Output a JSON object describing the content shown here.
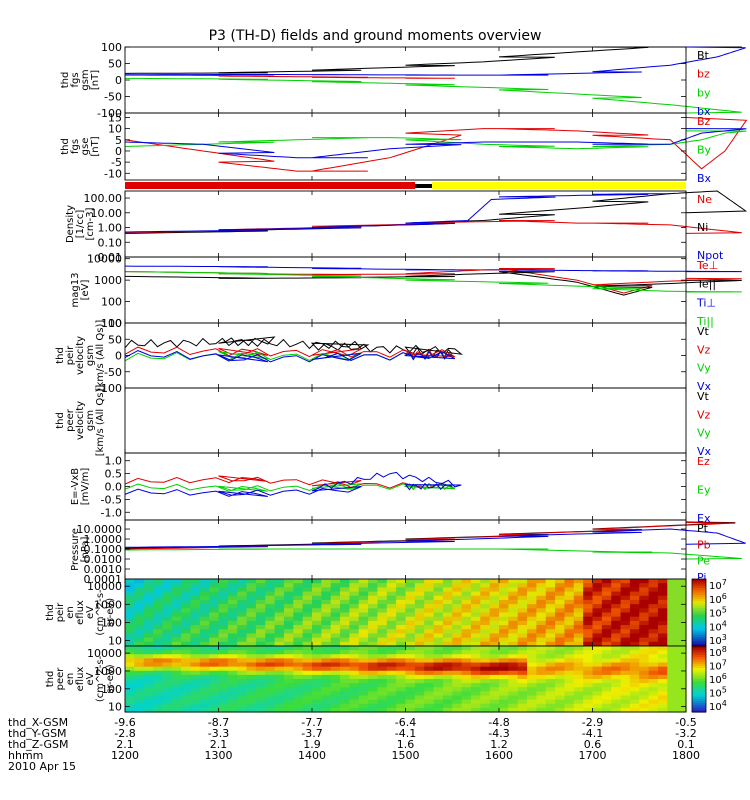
{
  "title": "P3 (TH-D) fields and ground moments overview",
  "colors": {
    "black": "#000000",
    "red": "#e00000",
    "green": "#00d000",
    "blue": "#0000e0",
    "yellow": "#ffff00"
  },
  "mode_bar": {
    "segments": [
      "red",
      "black",
      "yellow"
    ]
  },
  "chart_data": [
    {
      "type": "line",
      "id": "fgs_gsm",
      "ylabel": [
        "thd",
        "fgs",
        "gsm",
        "[nT]"
      ],
      "yticks": [
        "100",
        "50",
        "0",
        "-50",
        "-100"
      ],
      "ylim": [
        -100,
        100
      ],
      "scale": "linear",
      "legend": [
        {
          "name": "Bt",
          "color": "black"
        },
        {
          "name": "bz",
          "color": "red"
        },
        {
          "name": "by",
          "color": "green"
        },
        {
          "name": "bx",
          "color": "blue"
        }
      ],
      "series": [
        {
          "name": "Bt",
          "color": "black",
          "x": [
            1200,
            1300,
            1400,
            1500,
            1550,
            1600,
            1650,
            1700,
            1730,
            1750,
            1800
          ],
          "y": [
            20,
            22,
            30,
            45,
            55,
            70,
            85,
            100,
            110,
            120,
            140
          ]
        },
        {
          "name": "bz",
          "color": "red",
          "x": [
            1200,
            1250,
            1300,
            1350,
            1400,
            1500
          ],
          "y": [
            15,
            14,
            12,
            10,
            8,
            5
          ]
        },
        {
          "name": "by",
          "color": "green",
          "x": [
            1200,
            1300,
            1400,
            1500,
            1600,
            1700,
            1750,
            1800
          ],
          "y": [
            5,
            2,
            -5,
            -15,
            -30,
            -55,
            -75,
            -100
          ]
        },
        {
          "name": "bx",
          "color": "blue",
          "x": [
            1200,
            1300,
            1400,
            1500,
            1600,
            1700,
            1750,
            1780,
            1800
          ],
          "y": [
            16,
            17,
            16,
            15,
            15,
            25,
            45,
            70,
            100
          ]
        }
      ]
    },
    {
      "type": "line",
      "id": "fgs_gse",
      "ylabel": [
        "thd",
        "fgs",
        "gse",
        "[nT]"
      ],
      "yticks": [
        "15",
        "10",
        "5",
        "0",
        "-5",
        "-10"
      ],
      "ylim": [
        -13,
        17
      ],
      "scale": "linear",
      "legend": [
        {
          "name": "Bz",
          "color": "red"
        },
        {
          "name": "By",
          "color": "green"
        },
        {
          "name": "Bx",
          "color": "blue"
        }
      ],
      "series": [
        {
          "name": "Bz",
          "color": "red",
          "x": [
            1200,
            1250,
            1300,
            1350,
            1400,
            1450,
            1500,
            1550,
            1600,
            1650,
            1700,
            1750,
            1770,
            1785,
            1800
          ],
          "y": [
            5,
            0,
            -5,
            -9,
            -9,
            -3,
            8,
            10,
            10,
            9,
            7,
            5,
            -8,
            0,
            15
          ]
        },
        {
          "name": "By",
          "color": "green",
          "x": [
            1200,
            1250,
            1300,
            1350,
            1400,
            1450,
            1500,
            1550,
            1600,
            1650,
            1700,
            1750,
            1770,
            1785,
            1800
          ],
          "y": [
            2,
            3,
            4,
            5,
            6,
            6,
            5,
            3,
            2,
            1,
            2,
            3,
            5,
            8,
            9
          ]
        },
        {
          "name": "Bx",
          "color": "blue",
          "x": [
            1200,
            1250,
            1300,
            1350,
            1400,
            1450,
            1500,
            1550,
            1600,
            1650,
            1700,
            1750,
            1770,
            1785,
            1800
          ],
          "y": [
            4,
            3,
            -1,
            -3,
            -3,
            1,
            3,
            4,
            4,
            4,
            3,
            3,
            8,
            9,
            10
          ]
        }
      ]
    },
    {
      "type": "line",
      "id": "density",
      "ylabel": [
        "Density",
        "[1/cc]",
        "[cm-3]"
      ],
      "yticks": [
        "100.00",
        "10.00",
        "1.00",
        "0.10",
        "0.01"
      ],
      "ylim": [
        0.01,
        300
      ],
      "scale": "log",
      "legend": [
        {
          "name": "Ne",
          "color": "red"
        },
        {
          "name": "Ni",
          "color": "black"
        },
        {
          "name": "Npot",
          "color": "blue"
        }
      ],
      "series": [
        {
          "name": "Ni",
          "color": "black",
          "x": [
            1200,
            1300,
            1400,
            1500,
            1550,
            1600,
            1650,
            1700,
            1750,
            1780,
            1800
          ],
          "y": [
            0.4,
            0.6,
            1,
            2,
            3,
            8,
            20,
            60,
            200,
            300,
            10
          ]
        },
        {
          "name": "Ne",
          "color": "red",
          "x": [
            1200,
            1300,
            1400,
            1500,
            1550,
            1600,
            1650,
            1700,
            1750,
            1800
          ],
          "y": [
            0.45,
            0.7,
            1.2,
            2,
            2.5,
            3,
            2,
            2,
            1.5,
            0.4
          ]
        },
        {
          "name": "Npot",
          "color": "blue",
          "x": [
            1200,
            1300,
            1400,
            1500,
            1540,
            1555,
            1600,
            1650,
            1700,
            1750
          ],
          "y": [
            0.5,
            0.7,
            1,
            2,
            3,
            80,
            120,
            150,
            180,
            200
          ]
        }
      ]
    },
    {
      "type": "line",
      "id": "mag_temp",
      "ylabel": [
        "mag13",
        "[eV]"
      ],
      "yticks": [
        "10000",
        "1000",
        "100",
        "10"
      ],
      "ylim": [
        10,
        12000
      ],
      "scale": "log",
      "legend": [
        {
          "name": "Te⊥",
          "color": "red"
        },
        {
          "name": "Te||",
          "color": "black"
        },
        {
          "name": "Ti⊥",
          "color": "blue"
        },
        {
          "name": "Ti||",
          "color": "green"
        }
      ],
      "series": [
        {
          "name": "Ti⊥",
          "color": "blue",
          "x": [
            1200,
            1300,
            1400,
            1500,
            1550,
            1600,
            1650,
            1700,
            1750,
            1800
          ],
          "y": [
            4500,
            4200,
            3500,
            3000,
            3000,
            3000,
            2800,
            2700,
            2600,
            2500
          ]
        },
        {
          "name": "Te⊥",
          "color": "red",
          "x": [
            1200,
            1300,
            1400,
            1500,
            1550,
            1600,
            1650,
            1680,
            1700,
            1750,
            1800
          ],
          "y": [
            2500,
            2000,
            1800,
            2000,
            3000,
            3500,
            1000,
            250,
            600,
            900,
            1200
          ]
        },
        {
          "name": "Te||",
          "color": "black",
          "x": [
            1200,
            1300,
            1400,
            1500,
            1550,
            1600,
            1650,
            1680,
            1700,
            1750,
            1800
          ],
          "y": [
            1500,
            1200,
            1300,
            1500,
            2000,
            2500,
            800,
            200,
            500,
            700,
            1000
          ]
        },
        {
          "name": "Ti||",
          "color": "green",
          "x": [
            1200,
            1300,
            1400,
            1500,
            1600,
            1700,
            1750,
            1800
          ],
          "y": [
            2500,
            2000,
            1500,
            1000,
            700,
            400,
            300,
            280
          ]
        }
      ]
    },
    {
      "type": "line",
      "id": "peir_velocity",
      "ylabel": [
        "thd",
        "peir",
        "velocity",
        "gsm",
        "[km/s (All Qs)]"
      ],
      "yticks": [
        "100",
        "50",
        "0",
        "-50",
        "-100"
      ],
      "ylim": [
        -100,
        100
      ],
      "scale": "linear",
      "legend": [
        {
          "name": "Vt",
          "color": "black"
        },
        {
          "name": "Vz",
          "color": "red"
        },
        {
          "name": "Vy",
          "color": "green"
        },
        {
          "name": "Vx",
          "color": "blue"
        }
      ],
      "series": [
        {
          "name": "Vt",
          "color": "black",
          "x": [
            1200,
            1250,
            1300,
            1350,
            1400,
            1450,
            1500,
            1530
          ],
          "y": [
            35,
            40,
            45,
            35,
            30,
            20,
            15,
            5
          ]
        },
        {
          "name": "Vz",
          "color": "red",
          "x": [
            1200,
            1300,
            1400,
            1500,
            1530
          ],
          "y": [
            15,
            10,
            8,
            5,
            3
          ]
        },
        {
          "name": "Vy",
          "color": "green",
          "x": [
            1200,
            1300,
            1400,
            1500,
            1530
          ],
          "y": [
            -5,
            0,
            -5,
            0,
            0
          ]
        },
        {
          "name": "Vx",
          "color": "blue",
          "x": [
            1200,
            1300,
            1400,
            1500,
            1530
          ],
          "y": [
            5,
            -10,
            -5,
            0,
            0
          ]
        }
      ]
    },
    {
      "type": "line",
      "id": "peer_velocity",
      "ylabel": [
        "thd",
        "peer",
        "velocity",
        "gsm",
        "[km/s (All Qs)]"
      ],
      "yticks": [],
      "ylim": [
        -100,
        100
      ],
      "scale": "linear",
      "legend": [
        {
          "name": "Vt",
          "color": "black"
        },
        {
          "name": "Vz",
          "color": "red"
        },
        {
          "name": "Vy",
          "color": "green"
        },
        {
          "name": "Vx",
          "color": "blue"
        }
      ],
      "series": []
    },
    {
      "type": "line",
      "id": "efield",
      "ylabel": [
        "E=-VxB",
        "[mV/m]"
      ],
      "yticks": [
        "1.0",
        "0.5",
        "0.0",
        "-0.5",
        "-1.0"
      ],
      "ylim": [
        -1.3,
        1.3
      ],
      "scale": "linear",
      "legend": [
        {
          "name": "Ez",
          "color": "red"
        },
        {
          "name": "Ey",
          "color": "green"
        },
        {
          "name": "Ex",
          "color": "blue"
        }
      ],
      "series": [
        {
          "name": "Ez",
          "color": "red",
          "x": [
            1200,
            1300,
            1400,
            1500,
            1530
          ],
          "y": [
            0.2,
            0.3,
            0.1,
            0.0,
            0.0
          ]
        },
        {
          "name": "Ey",
          "color": "green",
          "x": [
            1200,
            1300,
            1400,
            1500,
            1530
          ],
          "y": [
            0.0,
            -0.1,
            0.0,
            0.0,
            0.0
          ]
        },
        {
          "name": "Ex",
          "color": "blue",
          "x": [
            1200,
            1300,
            1400,
            1450,
            1500,
            1530
          ],
          "y": [
            -0.2,
            -0.3,
            -0.1,
            0.5,
            0.0,
            0.0
          ]
        }
      ]
    },
    {
      "type": "line",
      "id": "pressure",
      "ylabel": [
        "Pressure",
        "[nPa]"
      ],
      "yticks": [
        "10.0000",
        "1.0000",
        "0.1000",
        "0.0100",
        "0.0010",
        "0.0001"
      ],
      "ylim": [
        0.0001,
        80
      ],
      "scale": "log",
      "legend": [
        {
          "name": "Pt",
          "color": "black"
        },
        {
          "name": "Pb",
          "color": "red"
        },
        {
          "name": "Pe",
          "color": "green"
        },
        {
          "name": "Pi",
          "color": "blue"
        }
      ],
      "series": [
        {
          "name": "Pt",
          "color": "black",
          "x": [
            1200,
            1300,
            1400,
            1500,
            1600,
            1700,
            1800
          ],
          "y": [
            0.12,
            0.2,
            0.4,
            1,
            3,
            10,
            50
          ]
        },
        {
          "name": "Pb",
          "color": "red",
          "x": [
            1200,
            1300,
            1400,
            1500,
            1600,
            1700,
            1800
          ],
          "y": [
            0.1,
            0.18,
            0.35,
            0.9,
            2.8,
            9.5,
            45
          ]
        },
        {
          "name": "Pi",
          "color": "blue",
          "x": [
            1200,
            1300,
            1400,
            1500,
            1600,
            1700,
            1750,
            1780,
            1800
          ],
          "y": [
            0.15,
            0.2,
            0.3,
            0.6,
            2,
            5,
            10,
            4,
            0.3
          ]
        },
        {
          "name": "Pe",
          "color": "green",
          "x": [
            1200,
            1300,
            1400,
            1500,
            1600,
            1680,
            1700,
            1750,
            1800
          ],
          "y": [
            0.08,
            0.1,
            0.1,
            0.1,
            0.1,
            0.05,
            0.05,
            0.04,
            0.01
          ]
        }
      ]
    },
    {
      "type": "heatmap",
      "id": "peir_eflux",
      "ylabel": [
        "thd",
        "peir",
        "en",
        "eflux",
        "eV",
        "(cm^2-s-",
        "sr-eV)"
      ],
      "yticks": [
        "10000",
        "1000",
        "100",
        "10"
      ],
      "ylim": [
        5,
        25000
      ],
      "scale": "log",
      "colorbar": {
        "ticks": [
          "10^7",
          "10^6",
          "10^5",
          "10^4",
          "10^3"
        ]
      }
    },
    {
      "type": "heatmap",
      "id": "peer_eflux",
      "ylabel": [
        "thd",
        "peer",
        "en",
        "eflux",
        "eV",
        "(cm^2-s-",
        "sr-eV)"
      ],
      "yticks": [
        "10000",
        "1000",
        "100",
        "10"
      ],
      "ylim": [
        5,
        25000
      ],
      "scale": "log",
      "colorbar": {
        "ticks": [
          "10^8",
          "10^7",
          "10^6",
          "10^5",
          "10^4"
        ]
      }
    }
  ],
  "x_axis": {
    "times": [
      "1200",
      "1300",
      "1400",
      "1500",
      "1600",
      "1700",
      "1800"
    ],
    "tick_values": [
      1200,
      1300,
      1400,
      1500,
      1600,
      1700,
      1800
    ],
    "row_labels": [
      "thd_X-GSM",
      "thd_Y-GSM",
      "thd_Z-GSM",
      "hhmm",
      "2010 Apr 15"
    ],
    "columns": [
      [
        "-9.6",
        "-2.8",
        "2.1"
      ],
      [
        "-8.7",
        "-3.3",
        "2.1"
      ],
      [
        "-7.7",
        "-3.7",
        "1.9"
      ],
      [
        "-6.4",
        "-4.1",
        "1.6"
      ],
      [
        "-4.8",
        "-4.3",
        "1.2"
      ],
      [
        "-2.9",
        "-4.1",
        "0.6"
      ],
      [
        "-0.5",
        "-3.2",
        "0.1"
      ]
    ]
  }
}
